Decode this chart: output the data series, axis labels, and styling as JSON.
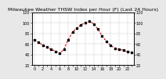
{
  "title": "Milwaukee Weather THSW Index per Hour (F) (Last 24 Hours)",
  "hours": [
    0,
    1,
    2,
    3,
    4,
    5,
    6,
    7,
    8,
    9,
    10,
    11,
    12,
    13,
    14,
    15,
    16,
    17,
    18,
    19,
    20,
    21,
    22,
    23
  ],
  "values": [
    68,
    63,
    58,
    54,
    50,
    46,
    42,
    50,
    68,
    82,
    90,
    96,
    100,
    103,
    98,
    88,
    75,
    65,
    57,
    52,
    50,
    48,
    45,
    44
  ],
  "line_color": "#dd0000",
  "marker_color": "#000000",
  "bg_color": "#e8e8e8",
  "plot_bg": "#ffffff",
  "grid_color": "#888888",
  "ylim": [
    20,
    120
  ],
  "ytick_left": [
    20,
    40,
    60,
    80,
    100,
    120
  ],
  "ytick_right": [
    20,
    40,
    60,
    80,
    100,
    120
  ],
  "title_fontsize": 4.5,
  "tick_fontsize": 3.5,
  "linewidth": 0.8,
  "markersize": 1.5
}
